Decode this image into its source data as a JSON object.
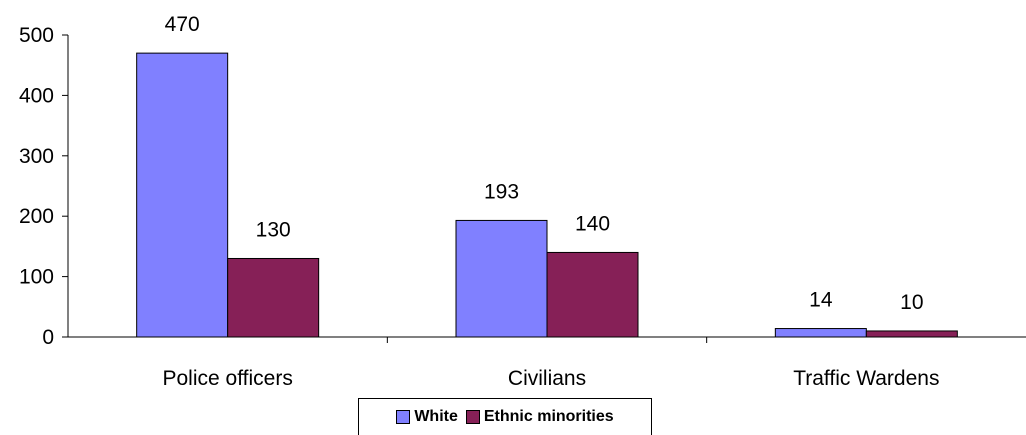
{
  "chart_data": {
    "type": "bar",
    "categories": [
      "Police officers",
      "Civilians",
      "Traffic Wardens"
    ],
    "series": [
      {
        "name": "White",
        "values": [
          470,
          193,
          14
        ],
        "color": "#8080ff"
      },
      {
        "name": "Ethnic minorities",
        "values": [
          130,
          140,
          10
        ],
        "color": "#862057"
      }
    ],
    "yticks": [
      0,
      100,
      200,
      300,
      400,
      500
    ],
    "ylim": [
      0,
      500
    ],
    "grid": false,
    "legend_position": "bottom"
  }
}
